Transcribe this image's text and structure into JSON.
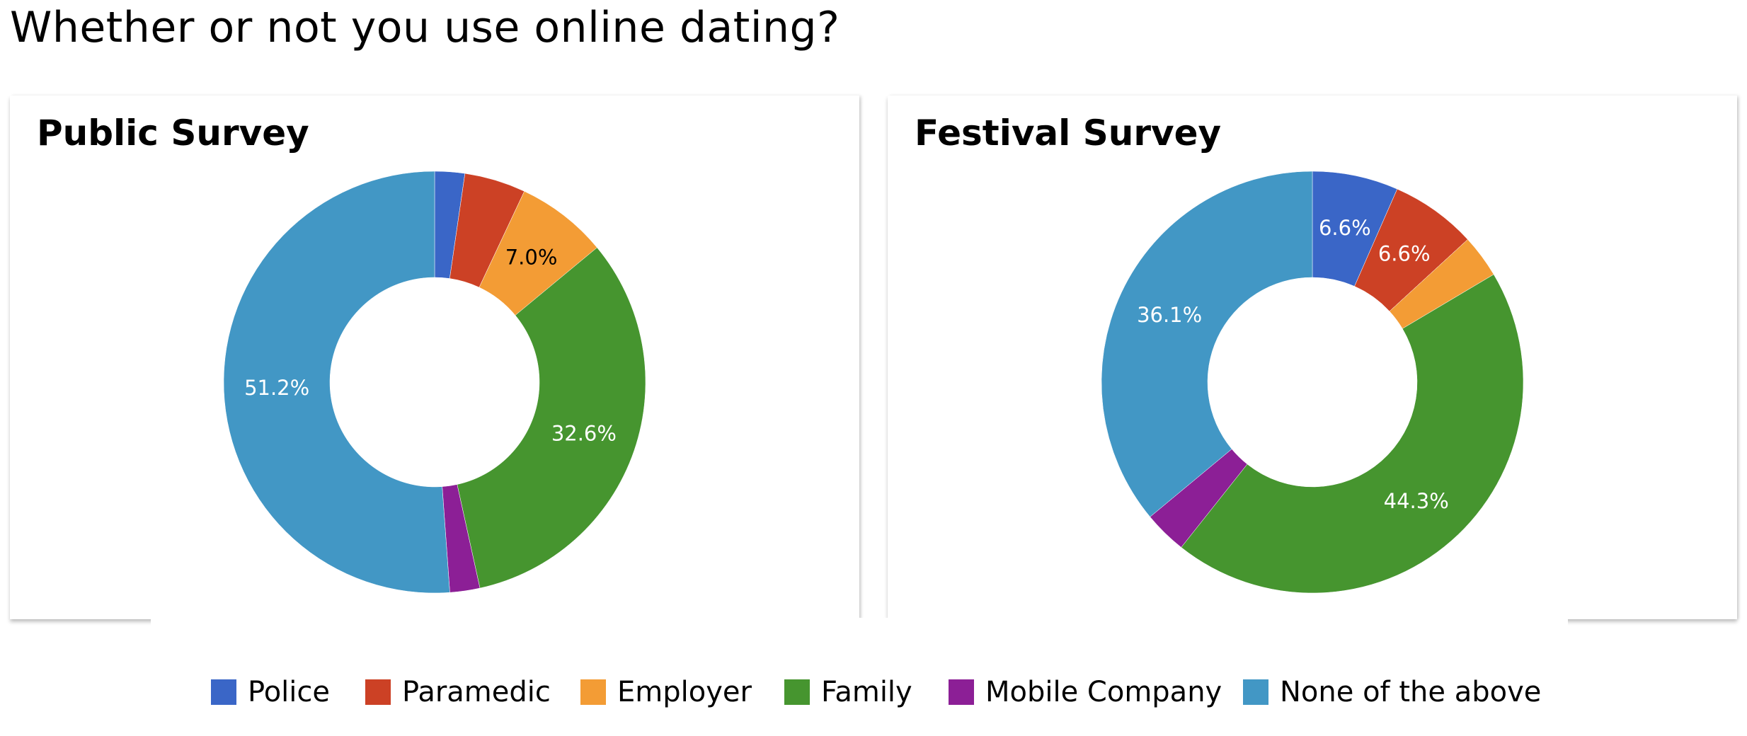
{
  "page": {
    "title": "Whether or not you use online dating?"
  },
  "chart_data": [
    {
      "type": "donut",
      "title": "Public Survey",
      "categories": [
        "Police",
        "Paramedic",
        "Employer",
        "Family",
        "Mobile Company",
        "None of the above"
      ],
      "values": [
        2.3,
        4.7,
        7.0,
        32.6,
        2.3,
        51.2
      ],
      "data_labels": [
        "",
        "",
        "7.0%",
        "32.6%",
        "",
        "51.2%"
      ],
      "colors": [
        "#3a66c7",
        "#cc4125",
        "#f39c35",
        "#46952f",
        "#8c1f96",
        "#4297c5"
      ],
      "label_colors": [
        "#ffffff",
        "#ffffff",
        "#000000",
        "#ffffff",
        "#ffffff",
        "#ffffff"
      ],
      "start_angle_deg": 0,
      "direction": "clockwise"
    },
    {
      "type": "donut",
      "title": "Festival Survey",
      "categories": [
        "Police",
        "Paramedic",
        "Employer",
        "Family",
        "Mobile Company",
        "None of the above"
      ],
      "values": [
        6.6,
        6.6,
        3.3,
        44.3,
        3.3,
        36.1
      ],
      "data_labels": [
        "6.6%",
        "6.6%",
        "",
        "44.3%",
        "",
        "36.1%"
      ],
      "colors": [
        "#3a66c7",
        "#cc4125",
        "#f39c35",
        "#46952f",
        "#8c1f96",
        "#4297c5"
      ],
      "label_colors": [
        "#ffffff",
        "#ffffff",
        "#ffffff",
        "#ffffff",
        "#ffffff",
        "#ffffff"
      ],
      "start_angle_deg": 0,
      "direction": "clockwise"
    }
  ],
  "legend": {
    "placement": "bottom",
    "items": [
      {
        "label": "Police",
        "color": "#3a66c7"
      },
      {
        "label": "Paramedic",
        "color": "#cc4125"
      },
      {
        "label": "Employer",
        "color": "#f39c35"
      },
      {
        "label": "Family",
        "color": "#46952f"
      },
      {
        "label": "Mobile Company",
        "color": "#8c1f96"
      },
      {
        "label": "None of the above",
        "color": "#4297c5"
      }
    ]
  }
}
